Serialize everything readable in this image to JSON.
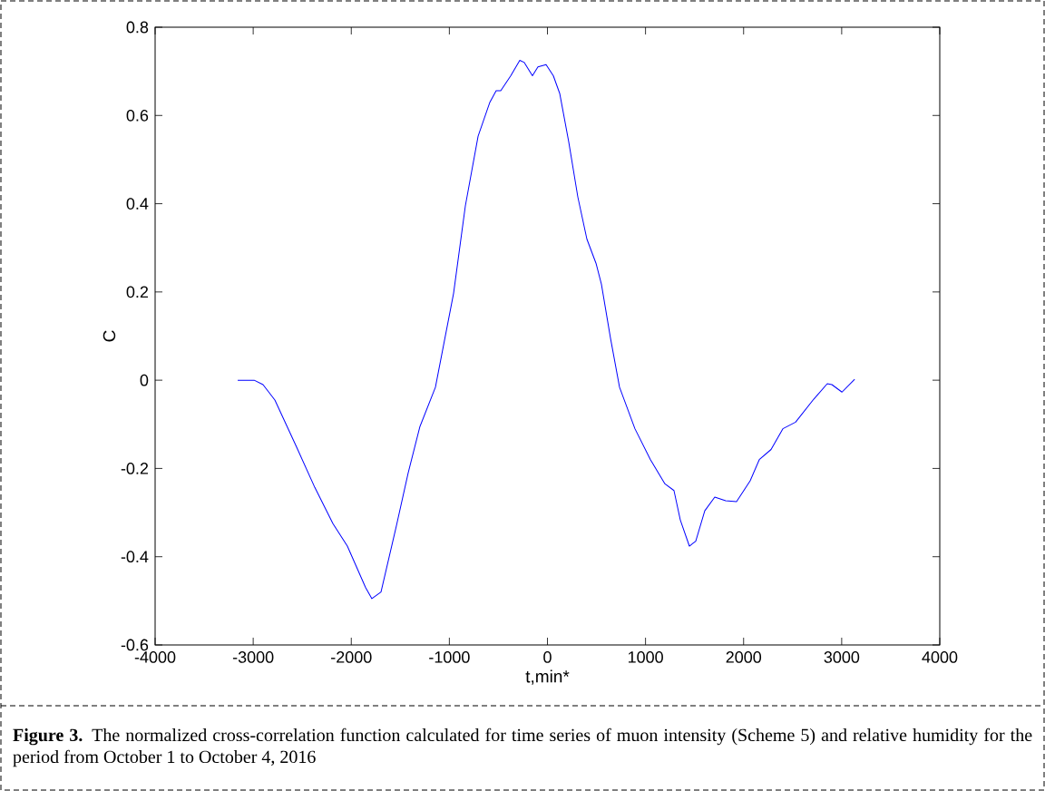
{
  "chart_data": {
    "type": "line",
    "xlabel": "t,min*",
    "ylabel": "C",
    "x": [
      -3158,
      -2990,
      -2900,
      -2779,
      -2557,
      -2372,
      -2187,
      -2040,
      -1854,
      -1790,
      -1697,
      -1540,
      -1420,
      -1300,
      -1142,
      -957,
      -837,
      -707,
      -587,
      -523,
      -476,
      -374,
      -282,
      -236,
      -153,
      -97,
      -14,
      60,
      125,
      217,
      310,
      402,
      495,
      550,
      643,
      735,
      892,
      1050,
      1198,
      1290,
      1355,
      1447,
      1512,
      1604,
      1706,
      1817,
      1928,
      2067,
      2160,
      2280,
      2400,
      2530,
      2715,
      2853,
      2900,
      3003,
      3132
    ],
    "values": [
      0,
      0,
      -0.01,
      -0.045,
      -0.152,
      -0.243,
      -0.325,
      -0.376,
      -0.47,
      -0.495,
      -0.48,
      -0.33,
      -0.21,
      -0.105,
      -0.016,
      0.197,
      0.395,
      0.553,
      0.63,
      0.656,
      0.656,
      0.69,
      0.725,
      0.72,
      0.69,
      0.71,
      0.715,
      0.69,
      0.65,
      0.54,
      0.415,
      0.32,
      0.265,
      0.218,
      0.095,
      -0.016,
      -0.11,
      -0.18,
      -0.235,
      -0.25,
      -0.317,
      -0.376,
      -0.365,
      -0.296,
      -0.265,
      -0.273,
      -0.275,
      -0.228,
      -0.18,
      -0.157,
      -0.11,
      -0.095,
      -0.043,
      -0.008,
      -0.01,
      -0.027,
      0.002
    ],
    "color": "#0000ff",
    "xlim": [
      -4000,
      4000
    ],
    "ylim": [
      -0.6,
      0.8
    ],
    "xticks": [
      -4000,
      -3000,
      -2000,
      -1000,
      0,
      1000,
      2000,
      3000,
      4000
    ],
    "yticks": [
      -0.6,
      -0.4,
      -0.2,
      0,
      0.2,
      0.4,
      0.6,
      0.8
    ],
    "annotations": [
      "**Figure 3.** The normalized cross-correlation function calculated for time series of muon intensity (Scheme 5) and relative humidity for the period from October 1 to October 4, 2016"
    ]
  }
}
